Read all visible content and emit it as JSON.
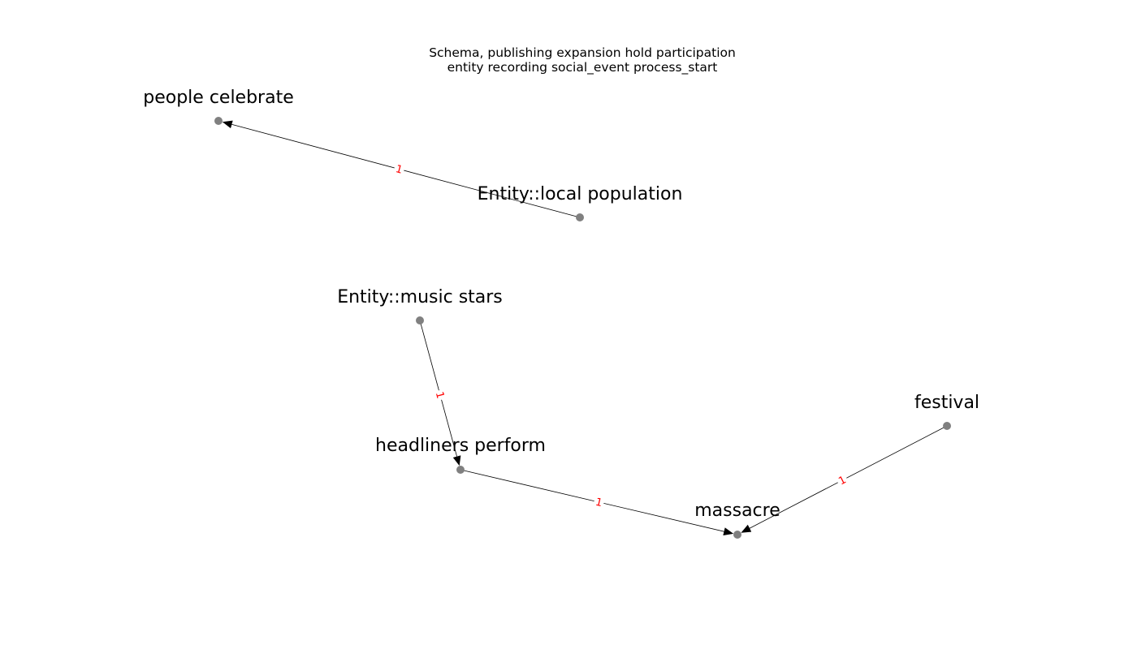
{
  "title": {
    "line1": "Schema, publishing expansion hold participation",
    "line2": "entity recording social_event process_start"
  },
  "nodes": [
    {
      "id": "people_celebrate",
      "label": "people celebrate"
    },
    {
      "id": "local_population",
      "label": "Entity::local population"
    },
    {
      "id": "music_stars",
      "label": "Entity::music stars"
    },
    {
      "id": "headliners_perform",
      "label": "headliners perform"
    },
    {
      "id": "massacre",
      "label": "massacre"
    },
    {
      "id": "festival",
      "label": "festival"
    }
  ],
  "edges": [
    {
      "source": "local_population",
      "target": "people_celebrate",
      "label": "1"
    },
    {
      "source": "music_stars",
      "target": "headliners_perform",
      "label": "1"
    },
    {
      "source": "headliners_perform",
      "target": "massacre",
      "label": "1"
    },
    {
      "source": "festival",
      "target": "massacre",
      "label": "1"
    }
  ],
  "colors": {
    "node": "#808080",
    "edge": "#000000",
    "edge_label": "#ff0000",
    "text": "#000000"
  }
}
